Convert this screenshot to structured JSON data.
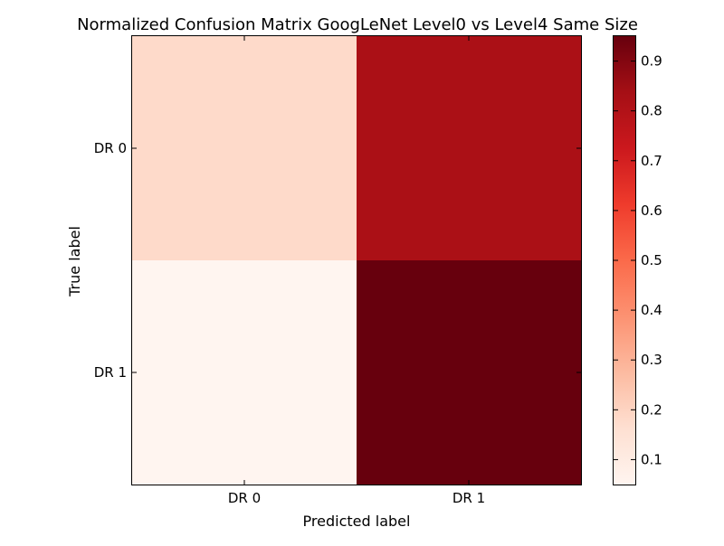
{
  "chart_data": {
    "type": "heatmap",
    "title": "Normalized Confusion Matrix GoogLeNet Level0 vs Level4 Same Size",
    "xlabel": "Predicted label",
    "ylabel": "True label",
    "x_categories": [
      "DR 0",
      "DR 1"
    ],
    "y_categories": [
      "DR 0",
      "DR 1"
    ],
    "values": [
      [
        0.18,
        0.82
      ],
      [
        0.05,
        0.95
      ]
    ],
    "colormap": "Reds",
    "colorbar": {
      "vmin": 0.05,
      "vmax": 0.95,
      "ticks": [
        0.1,
        0.2,
        0.3,
        0.4,
        0.5,
        0.6,
        0.7,
        0.8,
        0.9
      ],
      "tick_labels": [
        "0.1",
        "0.2",
        "0.3",
        "0.4",
        "0.5",
        "0.6",
        "0.7",
        "0.8",
        "0.9"
      ]
    }
  }
}
